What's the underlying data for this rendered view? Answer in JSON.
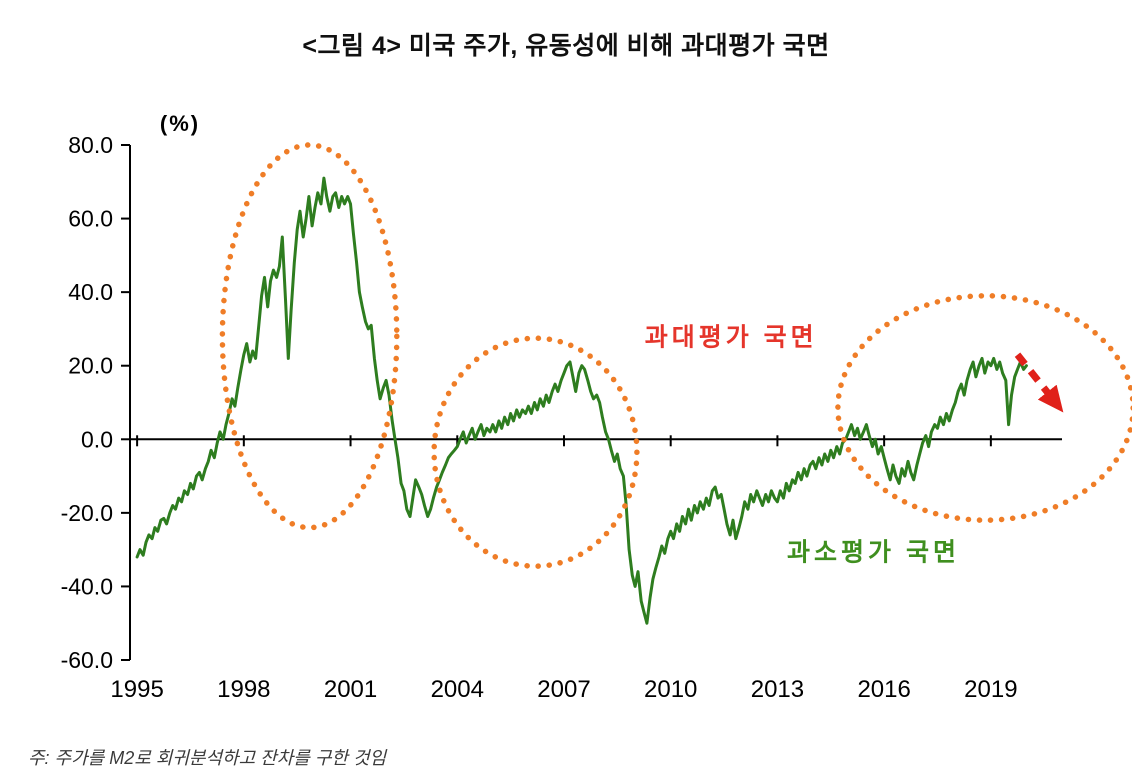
{
  "title": "<그림 4> 미국 주가, 유동성에 비해 과대평가 국면",
  "note": "주: 주가를 M2로 회귀분석하고 잔차를 구한 것임",
  "chart_data": {
    "type": "line",
    "title": "<그림 4> 미국 주가, 유동성에 비해 과대평가 국면",
    "unit_label": "(%)",
    "xlabel": "",
    "ylabel": "(%)",
    "xlim": [
      1994.8,
      2021.0
    ],
    "ylim": [
      -60,
      80
    ],
    "grid": false,
    "legend": "none",
    "x_ticks": {
      "values": [
        1995,
        1998,
        2001,
        2004,
        2007,
        2010,
        2013,
        2016,
        2019
      ],
      "labels": [
        "1995",
        "1998",
        "2001",
        "2004",
        "2007",
        "2010",
        "2013",
        "2016",
        "2019"
      ]
    },
    "y_ticks": {
      "values": [
        80,
        60,
        40,
        20,
        0,
        -20,
        -40,
        -60
      ],
      "labels": [
        "80.0",
        "60.0",
        "40.0",
        "20.0",
        "0.0",
        "-20.0",
        "-40.0",
        "-60.0"
      ]
    },
    "series": {
      "color": "#2e7d1f",
      "points": [
        [
          1995.0,
          -32
        ],
        [
          1995.08,
          -30
        ],
        [
          1995.17,
          -31.5
        ],
        [
          1995.25,
          -28
        ],
        [
          1995.33,
          -26
        ],
        [
          1995.42,
          -27
        ],
        [
          1995.5,
          -24
        ],
        [
          1995.58,
          -25
        ],
        [
          1995.67,
          -22
        ],
        [
          1995.75,
          -21.5
        ],
        [
          1995.83,
          -23
        ],
        [
          1995.92,
          -20
        ],
        [
          1996.0,
          -18
        ],
        [
          1996.08,
          -19
        ],
        [
          1996.17,
          -16
        ],
        [
          1996.25,
          -17
        ],
        [
          1996.33,
          -14
        ],
        [
          1996.42,
          -15
        ],
        [
          1996.5,
          -12
        ],
        [
          1996.58,
          -13.5
        ],
        [
          1996.67,
          -10
        ],
        [
          1996.75,
          -9
        ],
        [
          1996.83,
          -11
        ],
        [
          1996.92,
          -8
        ],
        [
          1997.0,
          -6
        ],
        [
          1997.08,
          -3
        ],
        [
          1997.17,
          -5
        ],
        [
          1997.25,
          -1
        ],
        [
          1997.33,
          2
        ],
        [
          1997.42,
          0
        ],
        [
          1997.5,
          4
        ],
        [
          1997.58,
          7
        ],
        [
          1997.67,
          11
        ],
        [
          1997.75,
          9
        ],
        [
          1997.83,
          14
        ],
        [
          1997.92,
          19
        ],
        [
          1998.0,
          23
        ],
        [
          1998.08,
          26
        ],
        [
          1998.17,
          21
        ],
        [
          1998.25,
          24
        ],
        [
          1998.33,
          22
        ],
        [
          1998.42,
          31
        ],
        [
          1998.5,
          39
        ],
        [
          1998.58,
          44
        ],
        [
          1998.67,
          36
        ],
        [
          1998.75,
          43
        ],
        [
          1998.83,
          46
        ],
        [
          1998.92,
          44
        ],
        [
          1999.0,
          47
        ],
        [
          1999.08,
          55
        ],
        [
          1999.17,
          38
        ],
        [
          1999.25,
          22
        ],
        [
          1999.33,
          35
        ],
        [
          1999.42,
          48
        ],
        [
          1999.5,
          57
        ],
        [
          1999.58,
          62
        ],
        [
          1999.67,
          55
        ],
        [
          1999.75,
          60
        ],
        [
          1999.83,
          66
        ],
        [
          1999.92,
          58
        ],
        [
          2000.0,
          63
        ],
        [
          2000.08,
          67
        ],
        [
          2000.17,
          64
        ],
        [
          2000.25,
          71
        ],
        [
          2000.33,
          66
        ],
        [
          2000.42,
          62
        ],
        [
          2000.5,
          66
        ],
        [
          2000.58,
          67
        ],
        [
          2000.67,
          63
        ],
        [
          2000.75,
          66
        ],
        [
          2000.83,
          64
        ],
        [
          2000.92,
          66
        ],
        [
          2001.0,
          64
        ],
        [
          2001.08,
          56
        ],
        [
          2001.17,
          48
        ],
        [
          2001.25,
          40
        ],
        [
          2001.33,
          36
        ],
        [
          2001.42,
          32
        ],
        [
          2001.5,
          30
        ],
        [
          2001.58,
          31
        ],
        [
          2001.67,
          22
        ],
        [
          2001.75,
          16
        ],
        [
          2001.83,
          11
        ],
        [
          2001.92,
          14
        ],
        [
          2002.0,
          16
        ],
        [
          2002.08,
          12
        ],
        [
          2002.17,
          5
        ],
        [
          2002.25,
          0
        ],
        [
          2002.33,
          -5
        ],
        [
          2002.42,
          -12
        ],
        [
          2002.5,
          -14
        ],
        [
          2002.58,
          -19
        ],
        [
          2002.67,
          -21
        ],
        [
          2002.75,
          -16
        ],
        [
          2002.83,
          -11
        ],
        [
          2002.92,
          -13
        ],
        [
          2003.0,
          -15
        ],
        [
          2003.08,
          -18
        ],
        [
          2003.17,
          -21
        ],
        [
          2003.25,
          -19
        ],
        [
          2003.33,
          -16
        ],
        [
          2003.42,
          -13
        ],
        [
          2003.5,
          -11
        ],
        [
          2003.58,
          -9
        ],
        [
          2003.67,
          -7
        ],
        [
          2003.75,
          -5
        ],
        [
          2003.83,
          -4
        ],
        [
          2003.92,
          -3
        ],
        [
          2004.0,
          -2
        ],
        [
          2004.08,
          0
        ],
        [
          2004.17,
          2
        ],
        [
          2004.25,
          -1
        ],
        [
          2004.33,
          1
        ],
        [
          2004.42,
          3
        ],
        [
          2004.5,
          0
        ],
        [
          2004.58,
          2
        ],
        [
          2004.67,
          4
        ],
        [
          2004.75,
          1
        ],
        [
          2004.83,
          3
        ],
        [
          2004.92,
          2
        ],
        [
          2005.0,
          4
        ],
        [
          2005.08,
          2
        ],
        [
          2005.17,
          5
        ],
        [
          2005.25,
          3
        ],
        [
          2005.33,
          6
        ],
        [
          2005.42,
          4
        ],
        [
          2005.5,
          7
        ],
        [
          2005.58,
          5
        ],
        [
          2005.67,
          8
        ],
        [
          2005.75,
          6
        ],
        [
          2005.83,
          8
        ],
        [
          2005.92,
          7
        ],
        [
          2006.0,
          9
        ],
        [
          2006.08,
          7
        ],
        [
          2006.17,
          10
        ],
        [
          2006.25,
          8
        ],
        [
          2006.33,
          11
        ],
        [
          2006.42,
          9
        ],
        [
          2006.5,
          12
        ],
        [
          2006.58,
          10
        ],
        [
          2006.67,
          13
        ],
        [
          2006.75,
          15
        ],
        [
          2006.83,
          13
        ],
        [
          2006.92,
          16
        ],
        [
          2007.0,
          18
        ],
        [
          2007.08,
          20
        ],
        [
          2007.17,
          21
        ],
        [
          2007.25,
          17
        ],
        [
          2007.33,
          13
        ],
        [
          2007.42,
          18
        ],
        [
          2007.5,
          20
        ],
        [
          2007.58,
          19
        ],
        [
          2007.67,
          16
        ],
        [
          2007.75,
          13
        ],
        [
          2007.83,
          11
        ],
        [
          2007.92,
          12
        ],
        [
          2008.0,
          10
        ],
        [
          2008.08,
          6
        ],
        [
          2008.17,
          2
        ],
        [
          2008.25,
          0
        ],
        [
          2008.33,
          -3
        ],
        [
          2008.42,
          -6
        ],
        [
          2008.5,
          -4
        ],
        [
          2008.58,
          -8
        ],
        [
          2008.67,
          -10
        ],
        [
          2008.75,
          -18
        ],
        [
          2008.83,
          -30
        ],
        [
          2008.92,
          -37
        ],
        [
          2009.0,
          -40
        ],
        [
          2009.08,
          -36
        ],
        [
          2009.17,
          -44
        ],
        [
          2009.25,
          -47
        ],
        [
          2009.33,
          -50
        ],
        [
          2009.42,
          -43
        ],
        [
          2009.5,
          -38
        ],
        [
          2009.58,
          -35
        ],
        [
          2009.67,
          -32
        ],
        [
          2009.75,
          -29
        ],
        [
          2009.83,
          -31
        ],
        [
          2009.92,
          -27
        ],
        [
          2010.0,
          -25
        ],
        [
          2010.08,
          -27
        ],
        [
          2010.17,
          -23
        ],
        [
          2010.25,
          -25
        ],
        [
          2010.33,
          -21
        ],
        [
          2010.42,
          -23
        ],
        [
          2010.5,
          -19
        ],
        [
          2010.58,
          -22
        ],
        [
          2010.67,
          -18
        ],
        [
          2010.75,
          -20
        ],
        [
          2010.83,
          -17
        ],
        [
          2010.92,
          -19
        ],
        [
          2011.0,
          -16
        ],
        [
          2011.08,
          -18
        ],
        [
          2011.17,
          -14
        ],
        [
          2011.25,
          -13
        ],
        [
          2011.33,
          -16
        ],
        [
          2011.42,
          -15
        ],
        [
          2011.5,
          -19
        ],
        [
          2011.58,
          -23
        ],
        [
          2011.67,
          -26
        ],
        [
          2011.75,
          -22
        ],
        [
          2011.83,
          -27
        ],
        [
          2011.92,
          -24
        ],
        [
          2012.0,
          -21
        ],
        [
          2012.08,
          -17
        ],
        [
          2012.17,
          -19
        ],
        [
          2012.25,
          -15
        ],
        [
          2012.33,
          -17
        ],
        [
          2012.42,
          -14
        ],
        [
          2012.5,
          -16
        ],
        [
          2012.58,
          -18
        ],
        [
          2012.67,
          -15
        ],
        [
          2012.75,
          -17
        ],
        [
          2012.83,
          -14
        ],
        [
          2012.92,
          -16
        ],
        [
          2013.0,
          -17
        ],
        [
          2013.08,
          -14
        ],
        [
          2013.17,
          -16
        ],
        [
          2013.25,
          -12
        ],
        [
          2013.33,
          -14
        ],
        [
          2013.42,
          -11
        ],
        [
          2013.5,
          -12
        ],
        [
          2013.58,
          -9
        ],
        [
          2013.67,
          -11
        ],
        [
          2013.75,
          -8
        ],
        [
          2013.83,
          -10
        ],
        [
          2013.92,
          -7
        ],
        [
          2014.0,
          -6
        ],
        [
          2014.08,
          -8
        ],
        [
          2014.17,
          -5
        ],
        [
          2014.25,
          -7
        ],
        [
          2014.33,
          -4
        ],
        [
          2014.42,
          -6
        ],
        [
          2014.5,
          -3
        ],
        [
          2014.58,
          -5
        ],
        [
          2014.67,
          -2
        ],
        [
          2014.75,
          -4
        ],
        [
          2014.83,
          -1
        ],
        [
          2014.92,
          0
        ],
        [
          2015.0,
          2
        ],
        [
          2015.08,
          4
        ],
        [
          2015.17,
          1
        ],
        [
          2015.25,
          3
        ],
        [
          2015.33,
          0
        ],
        [
          2015.42,
          2
        ],
        [
          2015.5,
          4
        ],
        [
          2015.58,
          1
        ],
        [
          2015.67,
          -2
        ],
        [
          2015.75,
          0
        ],
        [
          2015.83,
          -4
        ],
        [
          2015.92,
          -2
        ],
        [
          2016.0,
          -5
        ],
        [
          2016.08,
          -8
        ],
        [
          2016.17,
          -11
        ],
        [
          2016.25,
          -7
        ],
        [
          2016.33,
          -10
        ],
        [
          2016.42,
          -12
        ],
        [
          2016.5,
          -8
        ],
        [
          2016.58,
          -10
        ],
        [
          2016.67,
          -6
        ],
        [
          2016.75,
          -9
        ],
        [
          2016.83,
          -11
        ],
        [
          2016.92,
          -7
        ],
        [
          2017.0,
          -4
        ],
        [
          2017.08,
          -1
        ],
        [
          2017.17,
          1
        ],
        [
          2017.25,
          -2
        ],
        [
          2017.33,
          2
        ],
        [
          2017.42,
          4
        ],
        [
          2017.5,
          3
        ],
        [
          2017.58,
          6
        ],
        [
          2017.67,
          4
        ],
        [
          2017.75,
          7
        ],
        [
          2017.83,
          5
        ],
        [
          2017.92,
          8
        ],
        [
          2018.0,
          10
        ],
        [
          2018.08,
          13
        ],
        [
          2018.17,
          15
        ],
        [
          2018.25,
          12
        ],
        [
          2018.33,
          16
        ],
        [
          2018.42,
          19
        ],
        [
          2018.5,
          21
        ],
        [
          2018.58,
          17
        ],
        [
          2018.67,
          20
        ],
        [
          2018.75,
          22
        ],
        [
          2018.83,
          18
        ],
        [
          2018.92,
          21
        ],
        [
          2019.0,
          20
        ],
        [
          2019.08,
          22
        ],
        [
          2019.17,
          19
        ],
        [
          2019.25,
          21
        ],
        [
          2019.33,
          18
        ],
        [
          2019.42,
          16
        ],
        [
          2019.5,
          4
        ],
        [
          2019.58,
          12
        ],
        [
          2019.67,
          17
        ],
        [
          2019.75,
          19
        ],
        [
          2019.83,
          21
        ],
        [
          2019.92,
          19
        ],
        [
          2020.0,
          20
        ]
      ]
    },
    "annotations": {
      "overvalued_label": {
        "text": "과대평가 국면",
        "x": 2011.7,
        "y": 28,
        "color": "#e5352b"
      },
      "undervalued_label": {
        "text": "과소평가 국면",
        "x": 2015.7,
        "y": -30.5,
        "color": "#3f8f1f"
      },
      "ellipses": [
        {
          "cx": 1999.85,
          "cy": 28,
          "rx": 2.45,
          "ry": 52,
          "color": "#ef7d27"
        },
        {
          "cx": 2006.2,
          "cy": -3.5,
          "rx": 2.85,
          "ry": 31,
          "color": "#ef7d27"
        },
        {
          "cx": 2018.85,
          "cy": 8.5,
          "rx": 4.15,
          "ry": 30.5,
          "color": "#ef7d27"
        }
      ],
      "arrow": {
        "x1": 2019.75,
        "y1": 23,
        "x2": 2020.9,
        "y2": 9,
        "color": "#e0211a"
      }
    }
  }
}
